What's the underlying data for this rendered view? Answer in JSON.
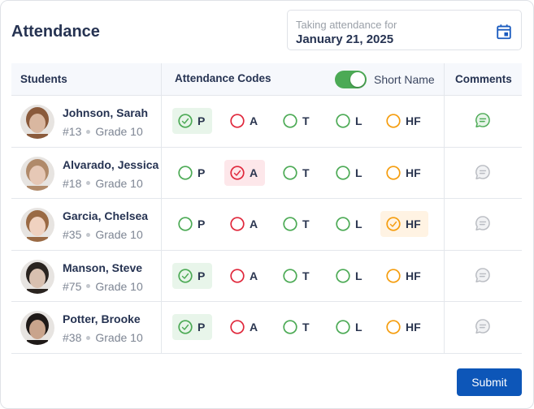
{
  "header": {
    "title": "Attendance",
    "date_label": "Taking attendance for",
    "date_value": "January 21, 2025",
    "calendar_icon": "calendar-icon"
  },
  "table": {
    "columns": {
      "students": "Students",
      "codes": "Attendance Codes",
      "comments": "Comments"
    },
    "toggle": {
      "label": "Short Name",
      "on": true
    },
    "codes": [
      "P",
      "A",
      "T",
      "L",
      "HF"
    ],
    "code_colors": {
      "P": "#4caa55",
      "A": "#e0283c",
      "T": "#4caa55",
      "L": "#4caa55",
      "HF": "#f59d0e"
    },
    "rows": [
      {
        "name": "Johnson, Sarah",
        "number": "#13",
        "grade": "Grade 10",
        "selected": "P",
        "has_comment": true
      },
      {
        "name": "Alvarado, Jessica",
        "number": "#18",
        "grade": "Grade 10",
        "selected": "A",
        "has_comment": false
      },
      {
        "name": "Garcia, Chelsea",
        "number": "#35",
        "grade": "Grade 10",
        "selected": "HF",
        "has_comment": false
      },
      {
        "name": "Manson, Steve",
        "number": "#75",
        "grade": "Grade 10",
        "selected": "P",
        "has_comment": false
      },
      {
        "name": "Potter, Brooke",
        "number": "#38",
        "grade": "Grade 10",
        "selected": "P",
        "has_comment": false
      }
    ]
  },
  "footer": {
    "submit_label": "Submit"
  },
  "colors": {
    "primary": "#0d56b8",
    "toggle_on": "#4caa55",
    "comment_active": "#4caa55",
    "comment_inactive": "#b9bcc2"
  }
}
